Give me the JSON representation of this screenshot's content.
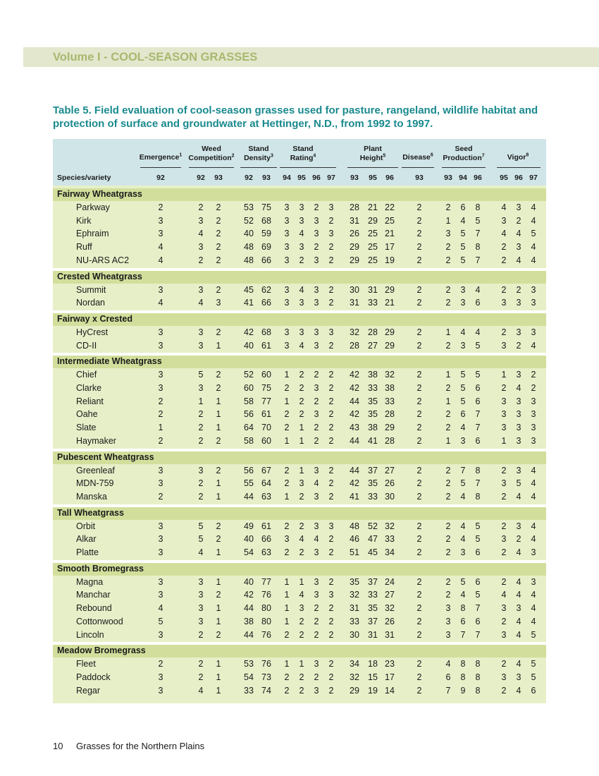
{
  "header": {
    "volume": "Volume I - COOL-SEASON GRASSES"
  },
  "title": "Table 5. Field evaluation of cool-season grasses used for pasture, rangeland, wildlife habitat and protection of surface and groundwater at Hettinger, N.D., from 1992 to 1997.",
  "columns": {
    "species": "Species/variety",
    "emergence": {
      "label": "Emergence",
      "note": "1",
      "years": [
        "92"
      ]
    },
    "weed": {
      "line1": "Weed",
      "line2": "Competition",
      "note": "2",
      "years": [
        "92",
        "93"
      ]
    },
    "density": {
      "line1": "Stand",
      "line2": "Density",
      "note": "3",
      "years": [
        "92",
        "93"
      ]
    },
    "rating": {
      "line1": "Stand",
      "line2": "Rating",
      "note": "4",
      "years": [
        "94",
        "95",
        "96",
        "97"
      ]
    },
    "height": {
      "line1": "Plant",
      "line2": "Height",
      "note": "5",
      "years": [
        "93",
        "95",
        "96"
      ]
    },
    "disease": {
      "label": "Disease",
      "note": "6",
      "years": [
        "93"
      ]
    },
    "seed": {
      "line1": "Seed",
      "line2": "Production",
      "note": "7",
      "years": [
        "93",
        "94",
        "96"
      ]
    },
    "vigor": {
      "label": "Vigor",
      "note": "8",
      "years": [
        "95",
        "96",
        "97"
      ]
    }
  },
  "groups": [
    {
      "name": "Fairway Wheatgrass",
      "rows": [
        {
          "name": "Parkway",
          "v": [
            "2",
            "2",
            "2",
            "53",
            "75",
            "3",
            "3",
            "2",
            "3",
            "28",
            "21",
            "22",
            "2",
            "2",
            "6",
            "8",
            "4",
            "3",
            "4"
          ]
        },
        {
          "name": "Kirk",
          "v": [
            "3",
            "3",
            "2",
            "52",
            "68",
            "3",
            "3",
            "3",
            "2",
            "31",
            "29",
            "25",
            "2",
            "1",
            "4",
            "5",
            "3",
            "2",
            "4"
          ]
        },
        {
          "name": "Ephraim",
          "v": [
            "3",
            "4",
            "2",
            "40",
            "59",
            "3",
            "4",
            "3",
            "3",
            "26",
            "25",
            "21",
            "2",
            "3",
            "5",
            "7",
            "4",
            "4",
            "5"
          ]
        },
        {
          "name": "Ruff",
          "v": [
            "4",
            "3",
            "2",
            "48",
            "69",
            "3",
            "3",
            "2",
            "2",
            "29",
            "25",
            "17",
            "2",
            "2",
            "5",
            "8",
            "2",
            "3",
            "4"
          ]
        },
        {
          "name": "NU-ARS AC2",
          "v": [
            "4",
            "2",
            "2",
            "48",
            "66",
            "3",
            "2",
            "3",
            "2",
            "29",
            "25",
            "19",
            "2",
            "2",
            "5",
            "7",
            "2",
            "4",
            "4"
          ]
        }
      ]
    },
    {
      "name": "Crested Wheatgrass",
      "rows": [
        {
          "name": "Summit",
          "v": [
            "3",
            "3",
            "2",
            "45",
            "62",
            "3",
            "4",
            "3",
            "2",
            "30",
            "31",
            "29",
            "2",
            "2",
            "3",
            "4",
            "2",
            "2",
            "3"
          ]
        },
        {
          "name": "Nordan",
          "v": [
            "4",
            "4",
            "3",
            "41",
            "66",
            "3",
            "3",
            "3",
            "2",
            "31",
            "33",
            "21",
            "2",
            "2",
            "3",
            "6",
            "3",
            "3",
            "3"
          ]
        }
      ]
    },
    {
      "name": "Fairway x Crested",
      "rows": [
        {
          "name": "HyCrest",
          "v": [
            "3",
            "3",
            "2",
            "42",
            "68",
            "3",
            "3",
            "3",
            "3",
            "32",
            "28",
            "29",
            "2",
            "1",
            "4",
            "4",
            "2",
            "3",
            "3"
          ]
        },
        {
          "name": "CD-II",
          "v": [
            "3",
            "3",
            "1",
            "40",
            "61",
            "3",
            "4",
            "3",
            "2",
            "28",
            "27",
            "29",
            "2",
            "2",
            "3",
            "5",
            "3",
            "2",
            "4"
          ]
        }
      ]
    },
    {
      "name": "Intermediate Wheatgrass",
      "rows": [
        {
          "name": "Chief",
          "v": [
            "3",
            "5",
            "2",
            "52",
            "60",
            "1",
            "2",
            "2",
            "2",
            "42",
            "38",
            "32",
            "2",
            "1",
            "5",
            "5",
            "1",
            "3",
            "2"
          ]
        },
        {
          "name": "Clarke",
          "v": [
            "3",
            "3",
            "2",
            "60",
            "75",
            "2",
            "2",
            "3",
            "2",
            "42",
            "33",
            "38",
            "2",
            "2",
            "5",
            "6",
            "2",
            "4",
            "2"
          ]
        },
        {
          "name": "Reliant",
          "v": [
            "2",
            "1",
            "1",
            "58",
            "77",
            "1",
            "2",
            "2",
            "2",
            "44",
            "35",
            "33",
            "2",
            "1",
            "5",
            "6",
            "3",
            "3",
            "3"
          ]
        },
        {
          "name": "Oahe",
          "v": [
            "2",
            "2",
            "1",
            "56",
            "61",
            "2",
            "2",
            "3",
            "2",
            "42",
            "35",
            "28",
            "2",
            "2",
            "6",
            "7",
            "3",
            "3",
            "3"
          ]
        },
        {
          "name": "Slate",
          "v": [
            "1",
            "2",
            "1",
            "64",
            "70",
            "2",
            "1",
            "2",
            "2",
            "43",
            "38",
            "29",
            "2",
            "2",
            "4",
            "7",
            "3",
            "3",
            "3"
          ]
        },
        {
          "name": "Haymaker",
          "v": [
            "2",
            "2",
            "2",
            "58",
            "60",
            "1",
            "1",
            "2",
            "2",
            "44",
            "41",
            "28",
            "2",
            "1",
            "3",
            "6",
            "1",
            "3",
            "3"
          ]
        }
      ]
    },
    {
      "name": "Pubescent Wheatgrass",
      "rows": [
        {
          "name": "Greenleaf",
          "v": [
            "3",
            "3",
            "2",
            "56",
            "67",
            "2",
            "1",
            "3",
            "2",
            "44",
            "37",
            "27",
            "2",
            "2",
            "7",
            "8",
            "2",
            "3",
            "4"
          ]
        },
        {
          "name": "MDN-759",
          "v": [
            "3",
            "2",
            "1",
            "55",
            "64",
            "2",
            "3",
            "4",
            "2",
            "42",
            "35",
            "26",
            "2",
            "2",
            "5",
            "7",
            "3",
            "5",
            "4"
          ]
        },
        {
          "name": "Manska",
          "v": [
            "2",
            "2",
            "1",
            "44",
            "63",
            "1",
            "2",
            "3",
            "2",
            "41",
            "33",
            "30",
            "2",
            "2",
            "4",
            "8",
            "2",
            "4",
            "4"
          ]
        }
      ]
    },
    {
      "name": "Tall Wheatgrass",
      "rows": [
        {
          "name": "Orbit",
          "v": [
            "3",
            "5",
            "2",
            "49",
            "61",
            "2",
            "2",
            "3",
            "3",
            "48",
            "52",
            "32",
            "2",
            "2",
            "4",
            "5",
            "2",
            "3",
            "4"
          ]
        },
        {
          "name": "Alkar",
          "v": [
            "3",
            "5",
            "2",
            "40",
            "66",
            "3",
            "4",
            "4",
            "2",
            "46",
            "47",
            "33",
            "2",
            "2",
            "4",
            "5",
            "3",
            "2",
            "4"
          ]
        },
        {
          "name": "Platte",
          "v": [
            "3",
            "4",
            "1",
            "54",
            "63",
            "2",
            "2",
            "3",
            "2",
            "51",
            "45",
            "34",
            "2",
            "2",
            "3",
            "6",
            "2",
            "4",
            "3"
          ]
        }
      ]
    },
    {
      "name": "Smooth Bromegrass",
      "rows": [
        {
          "name": "Magna",
          "v": [
            "3",
            "3",
            "1",
            "40",
            "77",
            "1",
            "1",
            "3",
            "2",
            "35",
            "37",
            "24",
            "2",
            "2",
            "5",
            "6",
            "2",
            "4",
            "3"
          ]
        },
        {
          "name": "Manchar",
          "v": [
            "3",
            "3",
            "2",
            "42",
            "76",
            "1",
            "4",
            "3",
            "3",
            "32",
            "33",
            "27",
            "2",
            "2",
            "4",
            "5",
            "4",
            "4",
            "4"
          ]
        },
        {
          "name": "Rebound",
          "v": [
            "4",
            "3",
            "1",
            "44",
            "80",
            "1",
            "3",
            "2",
            "2",
            "31",
            "35",
            "32",
            "2",
            "3",
            "8",
            "7",
            "3",
            "3",
            "4"
          ]
        },
        {
          "name": "Cottonwood",
          "v": [
            "5",
            "3",
            "1",
            "38",
            "80",
            "1",
            "2",
            "2",
            "2",
            "33",
            "37",
            "26",
            "2",
            "3",
            "6",
            "6",
            "2",
            "4",
            "4"
          ]
        },
        {
          "name": "Lincoln",
          "v": [
            "3",
            "2",
            "2",
            "44",
            "76",
            "2",
            "2",
            "2",
            "2",
            "30",
            "31",
            "31",
            "2",
            "3",
            "7",
            "7",
            "3",
            "4",
            "5"
          ]
        }
      ]
    },
    {
      "name": "Meadow Bromegrass",
      "rows": [
        {
          "name": "Fleet",
          "v": [
            "2",
            "2",
            "1",
            "53",
            "76",
            "1",
            "1",
            "3",
            "2",
            "34",
            "18",
            "23",
            "2",
            "4",
            "8",
            "8",
            "2",
            "4",
            "5"
          ]
        },
        {
          "name": "Paddock",
          "v": [
            "3",
            "2",
            "1",
            "54",
            "73",
            "2",
            "2",
            "2",
            "2",
            "32",
            "15",
            "17",
            "2",
            "6",
            "8",
            "8",
            "3",
            "3",
            "5"
          ]
        },
        {
          "name": "Regar",
          "v": [
            "3",
            "4",
            "1",
            "33",
            "74",
            "2",
            "2",
            "3",
            "2",
            "29",
            "19",
            "14",
            "2",
            "7",
            "9",
            "8",
            "2",
            "4",
            "6"
          ]
        }
      ]
    }
  ],
  "footer": {
    "page": "10",
    "text": "Grasses for the Northern Plains"
  }
}
